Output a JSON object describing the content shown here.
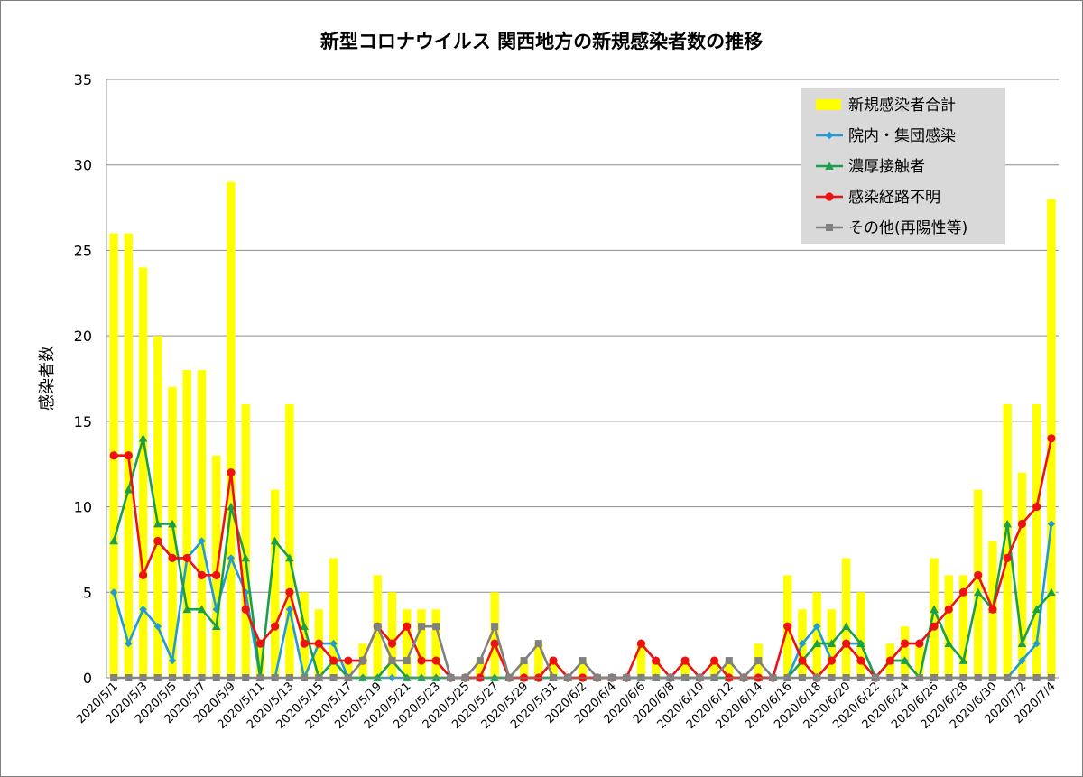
{
  "chart_data": {
    "type": "bar",
    "title": "新型コロナウイルス 関西地方の新規感染者数の推移",
    "ylabel": "感染者数",
    "xlabel": "",
    "ylim": [
      0,
      35
    ],
    "yticks": [
      0,
      5,
      10,
      15,
      20,
      25,
      30,
      35
    ],
    "grid": true,
    "legend_position": "top-right",
    "categories": [
      "2020/5/1",
      "2020/5/2",
      "2020/5/3",
      "2020/5/4",
      "2020/5/5",
      "2020/5/6",
      "2020/5/7",
      "2020/5/8",
      "2020/5/9",
      "2020/5/10",
      "2020/5/11",
      "2020/5/12",
      "2020/5/13",
      "2020/5/14",
      "2020/5/15",
      "2020/5/16",
      "2020/5/17",
      "2020/5/18",
      "2020/5/19",
      "2020/5/20",
      "2020/5/21",
      "2020/5/22",
      "2020/5/23",
      "2020/5/24",
      "2020/5/25",
      "2020/5/26",
      "2020/5/27",
      "2020/5/28",
      "2020/5/29",
      "2020/5/30",
      "2020/5/31",
      "2020/6/1",
      "2020/6/2",
      "2020/6/3",
      "2020/6/4",
      "2020/6/5",
      "2020/6/6",
      "2020/6/7",
      "2020/6/8",
      "2020/6/9",
      "2020/6/10",
      "2020/6/11",
      "2020/6/12",
      "2020/6/13",
      "2020/6/14",
      "2020/6/15",
      "2020/6/16",
      "2020/6/17",
      "2020/6/18",
      "2020/6/19",
      "2020/6/20",
      "2020/6/21",
      "2020/6/22",
      "2020/6/23",
      "2020/6/24",
      "2020/6/25",
      "2020/6/26",
      "2020/6/27",
      "2020/6/28",
      "2020/6/29",
      "2020/6/30",
      "2020/7/1",
      "2020/7/2",
      "2020/7/3",
      "2020/7/4"
    ],
    "xtick_labels": [
      "2020/5/1",
      "2020/5/3",
      "2020/5/5",
      "2020/5/7",
      "2020/5/9",
      "2020/5/11",
      "2020/5/13",
      "2020/5/15",
      "2020/5/17",
      "2020/5/19",
      "2020/5/21",
      "2020/5/23",
      "2020/5/25",
      "2020/5/27",
      "2020/5/29",
      "2020/5/31",
      "2020/6/2",
      "2020/6/4",
      "2020/6/6",
      "2020/6/8",
      "2020/6/10",
      "2020/6/12",
      "2020/6/14",
      "2020/6/16",
      "2020/6/18",
      "2020/6/20",
      "2020/6/22",
      "2020/6/24",
      "2020/6/26",
      "2020/6/28",
      "2020/6/30",
      "2020/7/2",
      "2020/7/4"
    ],
    "series": [
      {
        "name": "新規感染者合計",
        "type": "bar",
        "color": "#ffff00",
        "values": [
          26,
          26,
          24,
          20,
          17,
          18,
          18,
          13,
          29,
          16,
          2,
          11,
          16,
          5,
          4,
          7,
          1,
          2,
          6,
          5,
          4,
          4,
          4,
          0,
          0,
          1,
          5,
          0,
          1,
          2,
          1,
          0,
          1,
          0,
          0,
          0,
          2,
          1,
          0,
          1,
          0,
          1,
          1,
          0,
          2,
          0,
          6,
          4,
          5,
          4,
          7,
          5,
          0,
          2,
          3,
          2,
          7,
          6,
          6,
          11,
          8,
          16,
          12,
          16,
          28
        ]
      },
      {
        "name": "院内・集団感染",
        "type": "line",
        "color": "#1e9bd8",
        "marker": "diamond",
        "values": [
          5,
          2,
          4,
          3,
          1,
          7,
          8,
          4,
          7,
          5,
          0,
          0,
          4,
          0,
          2,
          2,
          0,
          0,
          0,
          0,
          0,
          0,
          0,
          0,
          0,
          0,
          0,
          0,
          0,
          0,
          0,
          0,
          0,
          0,
          0,
          0,
          0,
          0,
          0,
          0,
          0,
          0,
          0,
          0,
          0,
          0,
          0,
          2,
          3,
          1,
          2,
          2,
          0,
          1,
          1,
          0,
          0,
          0,
          0,
          0,
          0,
          0,
          1,
          2,
          9
        ]
      },
      {
        "name": "濃厚接触者",
        "type": "line",
        "color": "#1a9e4a",
        "marker": "triangle",
        "values": [
          8,
          11,
          14,
          9,
          9,
          4,
          4,
          3,
          10,
          7,
          0,
          8,
          7,
          3,
          0,
          1,
          0,
          0,
          0,
          1,
          0,
          0,
          0,
          0,
          0,
          0,
          0,
          0,
          0,
          0,
          0,
          0,
          0,
          0,
          0,
          0,
          0,
          0,
          0,
          0,
          0,
          0,
          0,
          0,
          0,
          0,
          0,
          1,
          2,
          2,
          3,
          2,
          0,
          1,
          1,
          0,
          4,
          2,
          1,
          5,
          4,
          9,
          2,
          4,
          5
        ]
      },
      {
        "name": "感染経路不明",
        "type": "line",
        "color": "#ee1111",
        "marker": "circle",
        "values": [
          13,
          13,
          6,
          8,
          7,
          7,
          6,
          6,
          12,
          4,
          2,
          3,
          5,
          2,
          2,
          1,
          1,
          1,
          3,
          2,
          3,
          1,
          1,
          0,
          0,
          0,
          2,
          0,
          0,
          0,
          1,
          0,
          0,
          0,
          0,
          0,
          2,
          1,
          0,
          1,
          0,
          1,
          0,
          0,
          0,
          0,
          3,
          1,
          0,
          1,
          2,
          1,
          0,
          1,
          2,
          2,
          3,
          4,
          5,
          6,
          4,
          7,
          9,
          10,
          14
        ]
      },
      {
        "name": "その他(再陽性等)",
        "type": "line",
        "color": "#808080",
        "marker": "square",
        "values": [
          0,
          0,
          0,
          0,
          0,
          0,
          0,
          0,
          0,
          0,
          0,
          0,
          0,
          0,
          0,
          0,
          0,
          1,
          3,
          1,
          1,
          3,
          3,
          0,
          0,
          1,
          3,
          0,
          1,
          2,
          0,
          0,
          1,
          0,
          0,
          0,
          0,
          0,
          0,
          0,
          0,
          0,
          1,
          0,
          1,
          0,
          0,
          0,
          0,
          0,
          0,
          0,
          0,
          0,
          0,
          0,
          0,
          0,
          0,
          0,
          0,
          0,
          0,
          0,
          0
        ]
      }
    ]
  }
}
